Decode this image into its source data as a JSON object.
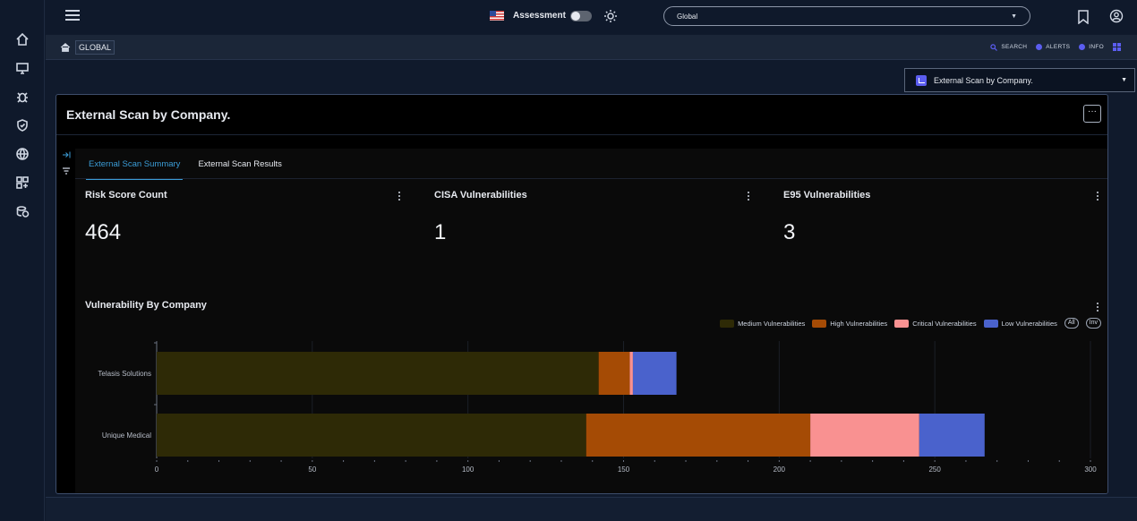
{
  "header": {
    "assessment_label": "Assessment",
    "scope_value": "Global"
  },
  "breadcrumb": {
    "current": "GLOBAL"
  },
  "subbar": {
    "search": "SEARCH",
    "alerts": "ALERTS",
    "info": "INFO"
  },
  "report_select": {
    "value": "External Scan by Company."
  },
  "panel": {
    "title": "External Scan by Company.",
    "tabs": [
      {
        "label": "External Scan Summary",
        "active": true
      },
      {
        "label": "External Scan Results",
        "active": false
      }
    ],
    "cards": [
      {
        "title": "Risk Score Count",
        "value": "464"
      },
      {
        "title": "CISA Vulnerabilities",
        "value": "1"
      },
      {
        "title": "E95 Vulnerabilities",
        "value": "3"
      }
    ],
    "chart_title": "Vulnerability By Company",
    "legend_all": "All",
    "legend_inv": "Inv"
  },
  "colors": {
    "medium": "#2e2a06",
    "high": "#a54b05",
    "critical": "#f99191",
    "low": "#4a62cc",
    "accent": "#3b9cd6"
  },
  "chart_data": {
    "type": "bar",
    "orientation": "horizontal",
    "stacked": true,
    "categories": [
      "Telasis Solutions",
      "Unique Medical"
    ],
    "series": [
      {
        "name": "Medium Vulnerabilities",
        "values": [
          142,
          138
        ]
      },
      {
        "name": "High Vulnerabilities",
        "values": [
          10,
          72
        ]
      },
      {
        "name": "Critical Vulnerabilities",
        "values": [
          1,
          35
        ]
      },
      {
        "name": "Low Vulnerabilities",
        "values": [
          14,
          21
        ]
      }
    ],
    "x_ticks": [
      0,
      50,
      100,
      150,
      200,
      250,
      300
    ],
    "xlim": [
      0,
      300
    ],
    "xlabel": "",
    "ylabel": "",
    "grid": true,
    "legend_position": "top-right"
  }
}
